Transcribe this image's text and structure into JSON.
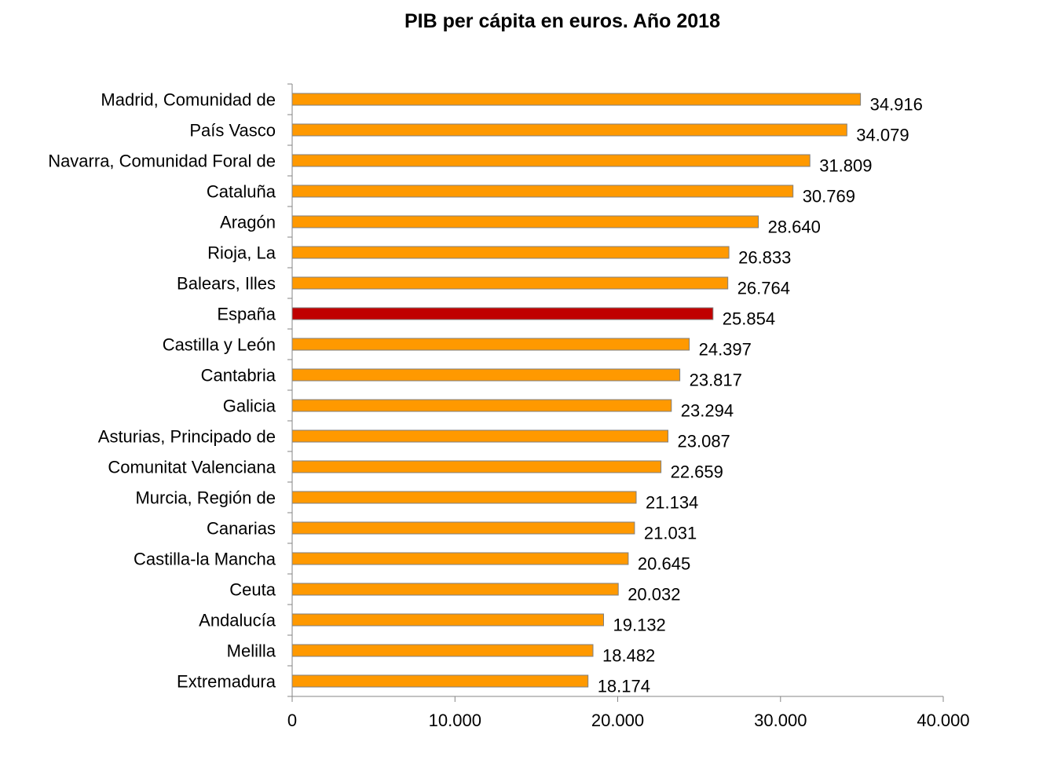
{
  "chart_data": {
    "type": "bar",
    "orientation": "horizontal",
    "title": "PIB per cápita en euros. Año 2018",
    "xlabel": "",
    "ylabel": "",
    "categories": [
      "Madrid, Comunidad de",
      "País Vasco",
      "Navarra, Comunidad Foral de",
      "Cataluña",
      "Aragón",
      "Rioja, La",
      "Balears, Illes",
      "España",
      "Castilla y León",
      "Cantabria",
      "Galicia",
      "Asturias, Principado de",
      "Comunitat Valenciana",
      "Murcia, Región de",
      "Canarias",
      "Castilla-la Mancha",
      "Ceuta",
      "Andalucía",
      "Melilla",
      "Extremadura"
    ],
    "values": [
      34916,
      34079,
      31809,
      30769,
      28640,
      26833,
      26764,
      25854,
      24397,
      23817,
      23294,
      23087,
      22659,
      21134,
      21031,
      20645,
      20032,
      19132,
      18482,
      18174
    ],
    "value_labels": [
      "34.916",
      "34.079",
      "31.809",
      "30.769",
      "28.640",
      "26.833",
      "26.764",
      "25.854",
      "24.397",
      "23.817",
      "23.294",
      "23.087",
      "22.659",
      "21.134",
      "21.031",
      "20.645",
      "20.032",
      "19.132",
      "18.482",
      "18.174"
    ],
    "xlim": [
      0,
      40000
    ],
    "ticks": [
      0,
      10000,
      20000,
      30000,
      40000
    ],
    "tick_labels": [
      "0",
      "10.000",
      "20.000",
      "30.000",
      "40.000"
    ],
    "highlight_category": "España",
    "grid": false,
    "legend": "none",
    "colors": {
      "bar": "#FF9900",
      "highlight": "#C00000",
      "bar_border": "#7F7F7F",
      "axis": "#868686",
      "text": "#000000"
    }
  }
}
